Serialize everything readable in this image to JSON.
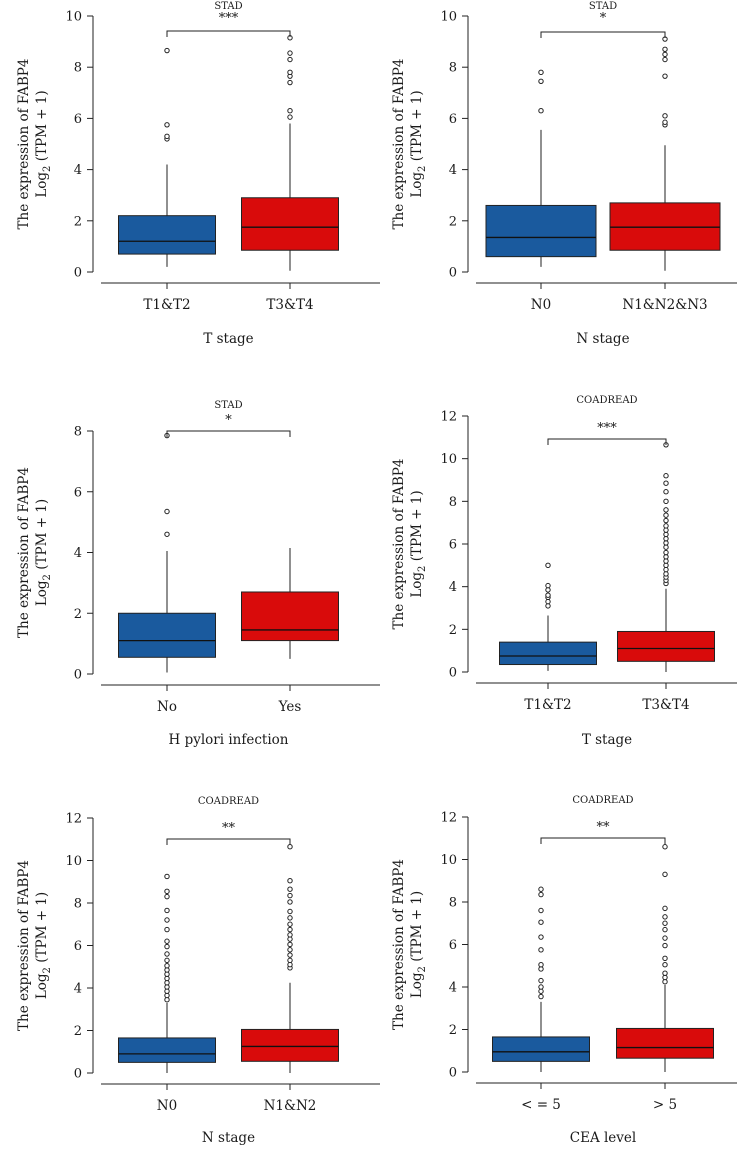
{
  "figure": {
    "y_title_line1": "The expression of FABP4",
    "y_title_line2_prefix": "Log",
    "y_title_line2_sub": "2",
    "y_title_line2_suffix": " (TPM + 1)"
  },
  "colors": {
    "group1": "#1a5a9e",
    "group2": "#d90b0b"
  },
  "chart_data": [
    {
      "type": "box",
      "title": "STAD",
      "xlabel": "T stage",
      "ylim": [
        0,
        10
      ],
      "yticks": [
        0,
        2,
        4,
        6,
        8,
        10
      ],
      "significance": "***",
      "groups": [
        {
          "name": "T1&T2",
          "q1": 0.7,
          "median": 1.2,
          "q3": 2.2,
          "whisker_low": 0.2,
          "whisker_high": 4.2,
          "outliers": [
            5.2,
            5.3,
            5.75,
            8.65
          ]
        },
        {
          "name": "T3&T4",
          "q1": 0.85,
          "median": 1.75,
          "q3": 2.9,
          "whisker_low": 0.05,
          "whisker_high": 5.8,
          "outliers": [
            6.05,
            6.3,
            7.4,
            7.65,
            7.8,
            8.3,
            8.55,
            9.15
          ]
        }
      ]
    },
    {
      "type": "box",
      "title": "STAD",
      "xlabel": "N stage",
      "ylim": [
        0,
        10
      ],
      "yticks": [
        0,
        2,
        4,
        6,
        8,
        10
      ],
      "significance": "*",
      "groups": [
        {
          "name": "N0",
          "q1": 0.6,
          "median": 1.35,
          "q3": 2.6,
          "whisker_low": 0.2,
          "whisker_high": 5.55,
          "outliers": [
            6.3,
            7.45,
            7.8
          ]
        },
        {
          "name": "N1&N2&N3",
          "q1": 0.85,
          "median": 1.75,
          "q3": 2.7,
          "whisker_low": 0.05,
          "whisker_high": 4.95,
          "outliers": [
            5.75,
            5.85,
            6.1,
            7.65,
            8.3,
            8.5,
            8.7,
            9.1
          ]
        }
      ]
    },
    {
      "type": "box",
      "title": "STAD",
      "xlabel": "H pylori infection",
      "ylim": [
        0,
        8
      ],
      "yticks": [
        0,
        2,
        4,
        6,
        8
      ],
      "significance": "*",
      "groups": [
        {
          "name": "No",
          "q1": 0.55,
          "median": 1.1,
          "q3": 2.0,
          "whisker_low": 0.05,
          "whisker_high": 4.05,
          "outliers": [
            4.6,
            5.35,
            7.85
          ]
        },
        {
          "name": "Yes",
          "q1": 1.1,
          "median": 1.45,
          "q3": 2.7,
          "whisker_low": 0.5,
          "whisker_high": 4.15,
          "outliers": []
        }
      ]
    },
    {
      "type": "box",
      "title": "COADREAD",
      "xlabel": "T stage",
      "ylim": [
        0,
        12
      ],
      "yticks": [
        0,
        2,
        4,
        6,
        8,
        10,
        12
      ],
      "significance": "***",
      "groups": [
        {
          "name": "T1&T2",
          "q1": 0.35,
          "median": 0.75,
          "q3": 1.4,
          "whisker_low": 0.05,
          "whisker_high": 2.65,
          "outliers": [
            3.1,
            3.3,
            3.5,
            3.6,
            3.85,
            4.05,
            5.0
          ]
        },
        {
          "name": "T3&T4",
          "q1": 0.5,
          "median": 1.1,
          "q3": 1.9,
          "whisker_low": 0.0,
          "whisker_high": 3.9,
          "outliers": [
            4.15,
            4.3,
            4.45,
            4.6,
            4.8,
            5.0,
            5.2,
            5.4,
            5.6,
            5.85,
            6.05,
            6.25,
            6.45,
            6.65,
            6.85,
            7.1,
            7.35,
            7.6,
            8.0,
            8.45,
            8.85,
            9.2,
            10.65
          ]
        }
      ]
    },
    {
      "type": "box",
      "title": "COADREAD",
      "xlabel": "N stage",
      "ylim": [
        0,
        12
      ],
      "yticks": [
        0,
        2,
        4,
        6,
        8,
        10,
        12
      ],
      "significance": "**",
      "groups": [
        {
          "name": "N0",
          "q1": 0.5,
          "median": 0.9,
          "q3": 1.65,
          "whisker_low": 0.0,
          "whisker_high": 3.3,
          "outliers": [
            3.45,
            3.65,
            3.85,
            4.05,
            4.25,
            4.45,
            4.65,
            4.85,
            5.05,
            5.3,
            5.6,
            5.95,
            6.2,
            6.75,
            7.2,
            7.65,
            8.3,
            8.55,
            9.25
          ]
        },
        {
          "name": "N1&N2",
          "q1": 0.55,
          "median": 1.25,
          "q3": 2.05,
          "whisker_low": 0.0,
          "whisker_high": 4.25,
          "outliers": [
            4.95,
            5.1,
            5.3,
            5.55,
            5.8,
            6.05,
            6.3,
            6.5,
            6.75,
            7.0,
            7.3,
            7.6,
            8.05,
            8.35,
            8.65,
            9.05,
            10.65
          ]
        }
      ]
    },
    {
      "type": "box",
      "title": "COADREAD",
      "xlabel": "CEA level",
      "ylim": [
        0,
        12
      ],
      "yticks": [
        0,
        2,
        4,
        6,
        8,
        10,
        12
      ],
      "significance": "**",
      "groups": [
        {
          "name": "< = 5",
          "q1": 0.5,
          "median": 0.95,
          "q3": 1.65,
          "whisker_low": 0.0,
          "whisker_high": 3.3,
          "outliers": [
            3.55,
            3.8,
            4.0,
            4.3,
            4.85,
            5.05,
            5.75,
            6.35,
            7.05,
            7.6,
            8.35,
            8.6
          ]
        },
        {
          "name": "> 5",
          "q1": 0.65,
          "median": 1.15,
          "q3": 2.05,
          "whisker_low": 0.0,
          "whisker_high": 4.1,
          "outliers": [
            4.25,
            4.45,
            4.65,
            5.05,
            5.35,
            5.95,
            6.3,
            6.7,
            7.0,
            7.3,
            7.7,
            9.3,
            10.6
          ]
        }
      ]
    }
  ]
}
